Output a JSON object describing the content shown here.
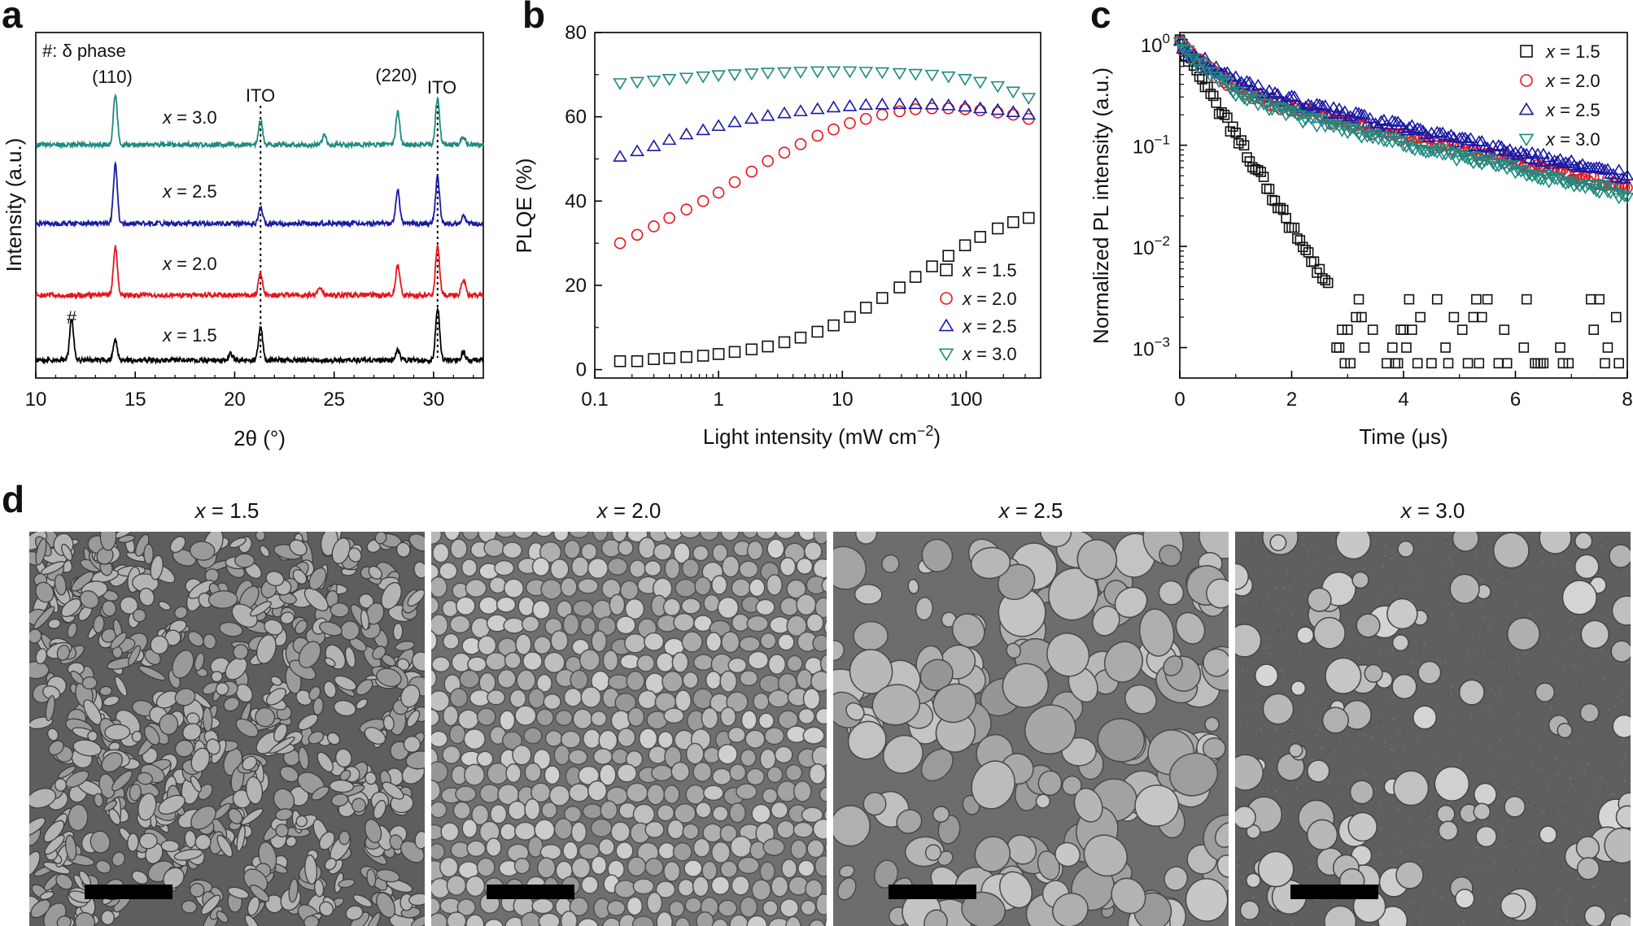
{
  "panels": {
    "a": "a",
    "b": "b",
    "c": "c",
    "d": "d"
  },
  "chart_data": [
    {
      "id": "a",
      "type": "line",
      "title": "",
      "xlabel": "2θ (°)",
      "ylabel": "Intensity (a.u.)",
      "xlim": [
        10,
        32.5
      ],
      "xticks": [
        10,
        15,
        20,
        25,
        30
      ],
      "annotation_header": "#: δ phase",
      "peak_labels": [
        {
          "text": "(110)",
          "x": 14.0
        },
        {
          "text": "ITO",
          "x": 21.3
        },
        {
          "text": "(220)",
          "x": 28.2
        },
        {
          "text": "ITO",
          "x": 30.2
        },
        {
          "text": "#",
          "x": 11.8
        }
      ],
      "reference_lines_x": [
        21.3,
        30.2
      ],
      "series": [
        {
          "name": "x = 1.5",
          "color": "#000000",
          "offset": 0,
          "peaks": [
            [
              11.8,
              50
            ],
            [
              14.0,
              25
            ],
            [
              19.8,
              8
            ],
            [
              21.3,
              42
            ],
            [
              28.2,
              12
            ],
            [
              30.2,
              65
            ],
            [
              31.5,
              10
            ]
          ]
        },
        {
          "name": "x = 2.0",
          "color": "#e8141b",
          "offset": 1,
          "peaks": [
            [
              14.0,
              60
            ],
            [
              21.3,
              28
            ],
            [
              24.3,
              8
            ],
            [
              28.2,
              38
            ],
            [
              30.2,
              60
            ],
            [
              31.5,
              20
            ]
          ]
        },
        {
          "name": "x = 2.5",
          "color": "#1a1aa6",
          "offset": 2,
          "peaks": [
            [
              14.0,
              72
            ],
            [
              21.3,
              20
            ],
            [
              28.2,
              42
            ],
            [
              30.2,
              58
            ],
            [
              31.5,
              10
            ]
          ]
        },
        {
          "name": "x = 3.0",
          "color": "#1f8a80",
          "offset": 3,
          "peaks": [
            [
              14.0,
              62
            ],
            [
              21.3,
              30
            ],
            [
              24.5,
              12
            ],
            [
              28.2,
              40
            ],
            [
              30.2,
              58
            ],
            [
              31.5,
              10
            ]
          ]
        }
      ]
    },
    {
      "id": "b",
      "type": "scatter",
      "title": "",
      "xlabel": "Light intensity (mW cm",
      "xlabel_sup": "−2",
      "xlabel_end": ")",
      "ylabel": "PLQE (%)",
      "xscale": "log",
      "xlim": [
        0.1,
        400
      ],
      "ylim": [
        -2,
        80
      ],
      "xticks": [
        {
          "v": 0.1,
          "label": "0.1"
        },
        {
          "v": 1,
          "label": "1"
        },
        {
          "v": 10,
          "label": "10"
        },
        {
          "v": 100,
          "label": "100"
        }
      ],
      "yticks": [
        0,
        20,
        40,
        60,
        80
      ],
      "legend_position": "bottom-right",
      "x": [
        0.16,
        0.22,
        0.3,
        0.4,
        0.55,
        0.75,
        1.0,
        1.35,
        1.85,
        2.5,
        3.4,
        4.6,
        6.3,
        8.5,
        11.5,
        15.5,
        21,
        29,
        39,
        53,
        72,
        98,
        130,
        180,
        240,
        320
      ],
      "series": [
        {
          "name": "x = 1.5",
          "marker": "square",
          "color": "#111111",
          "values": [
            2,
            2,
            2.5,
            2.7,
            3,
            3.3,
            3.7,
            4.2,
            4.8,
            5.5,
            6.5,
            7.6,
            9,
            10.5,
            12.5,
            14.7,
            17,
            19.5,
            22,
            24.5,
            27,
            29.5,
            31.5,
            33.5,
            35,
            36
          ]
        },
        {
          "name": "x = 2.0",
          "marker": "circle",
          "color": "#e8141b",
          "values": [
            30,
            32,
            34,
            36,
            38,
            40,
            42,
            44.5,
            47,
            49.5,
            51.5,
            53.5,
            55.5,
            57,
            58.5,
            59.5,
            60.5,
            61.3,
            61.8,
            62,
            62,
            61.8,
            61.5,
            61,
            60.5,
            59.5
          ]
        },
        {
          "name": "x = 2.5",
          "marker": "triangle-up",
          "color": "#1a1aa6",
          "values": [
            50.5,
            51.8,
            53,
            54.5,
            55.8,
            56.8,
            57.8,
            58.7,
            59.5,
            60.2,
            60.8,
            61.3,
            61.8,
            62.2,
            62.5,
            62.8,
            62.9,
            63,
            63,
            62.9,
            62.7,
            62.4,
            62,
            61.6,
            61.1,
            60.5
          ]
        },
        {
          "name": "x = 3.0",
          "marker": "triangle-down",
          "color": "#1f8a80",
          "values": [
            68,
            68.3,
            68.6,
            69,
            69.3,
            69.6,
            69.9,
            70.1,
            70.3,
            70.5,
            70.6,
            70.7,
            70.8,
            70.8,
            70.8,
            70.7,
            70.6,
            70.4,
            70.2,
            70,
            69.6,
            69,
            68.3,
            67.3,
            66,
            64.5
          ]
        }
      ]
    },
    {
      "id": "c",
      "type": "scatter",
      "title": "",
      "xlabel": "Time (μs)",
      "ylabel": "Normalized PL intensity (a.u.)",
      "yscale": "log",
      "xlim": [
        0,
        8
      ],
      "ylim": [
        0.0005,
        1.3
      ],
      "xticks": [
        0,
        2,
        4,
        6,
        8
      ],
      "yticks": [
        {
          "v": 1,
          "label": "10",
          "exp": "0"
        },
        {
          "v": 0.1,
          "label": "10",
          "exp": "−1"
        },
        {
          "v": 0.01,
          "label": "10",
          "exp": "−2"
        },
        {
          "v": 0.001,
          "label": "10",
          "exp": "−3"
        }
      ],
      "legend_position": "top-right",
      "series": [
        {
          "name": "x = 1.5",
          "marker": "square",
          "color": "#111111",
          "model": "fast",
          "floor": 0.0007,
          "tau": 0.48
        },
        {
          "name": "x = 2.0",
          "marker": "circle",
          "color": "#e8141b",
          "model": "biexp",
          "a1": 0.62,
          "t1": 0.55,
          "a2": 0.38,
          "t2": 3.5
        },
        {
          "name": "x = 2.5",
          "marker": "triangle-up",
          "color": "#1a1aa6",
          "model": "biexp",
          "a1": 0.55,
          "t1": 0.6,
          "a2": 0.45,
          "t2": 3.6
        },
        {
          "name": "x = 3.0",
          "marker": "triangle-down",
          "color": "#1f8a80",
          "model": "biexp",
          "a1": 0.66,
          "t1": 0.5,
          "a2": 0.34,
          "t2": 3.4
        }
      ]
    }
  ],
  "sem": {
    "images": [
      {
        "label": "x = 1.5",
        "kind": "network"
      },
      {
        "label": "x = 2.0",
        "kind": "grains"
      },
      {
        "label": "x = 2.5",
        "kind": "large-grains"
      },
      {
        "label": "x = 3.0",
        "kind": "islands"
      }
    ]
  }
}
